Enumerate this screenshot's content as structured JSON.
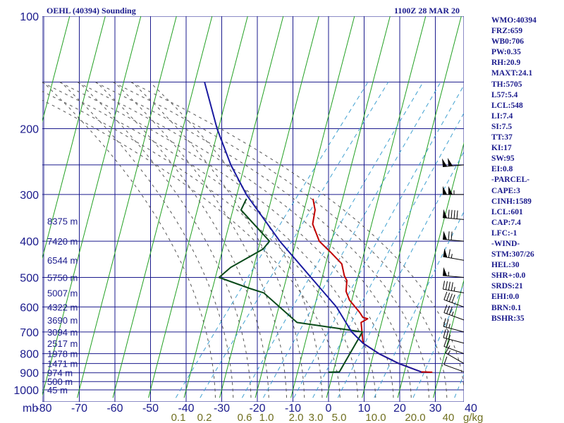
{
  "header": {
    "title": "OEHL (40394) Sounding",
    "timestamp": "1100Z 28 MAR 20"
  },
  "indices": [
    "WMO:40394",
    "FRZ:659",
    "WB0:706",
    "PW:0.35",
    "RH:20.9",
    "MAXT:24.1",
    "TH:5705",
    "L57:5.4",
    "LCL:548",
    "LI:7.4",
    "SI:7.5",
    "TT:37",
    "KI:17",
    "SW:95",
    "EI:0.8",
    "-PARCEL-",
    "CAPE:3",
    "CINH:1589",
    "LCL:601",
    "CAP:7.4",
    "LFC:-1",
    "-WIND-",
    "STM:307/26",
    "HEL:30",
    "SHR+:0.0",
    "SRDS:21",
    "EHI:0.0",
    "BRN:0.1",
    "BSHR:35"
  ],
  "colors": {
    "isobar": "#1a1a8c",
    "isotherm": "#1a1a8c",
    "dry_adiabat": "#22a022",
    "moist_adiabat": "#555555",
    "mixing_ratio": "#3fa0d0",
    "temperature": "#c00000",
    "dewpoint": "#0a4a1a",
    "parcel": "#1a1aa0",
    "text": "#1a1a8c",
    "mixing_label": "#707020"
  },
  "chart_data": {
    "type": "line",
    "subtype": "skew-t log-p sounding",
    "x_axis": {
      "unit_label": "mb",
      "ticks": [
        -80,
        -70,
        -60,
        -50,
        -40,
        -30,
        -20,
        -10,
        0,
        10,
        20,
        30,
        40
      ],
      "tick_labels": [
        "-80",
        "-70",
        "-60",
        "-50",
        "-40",
        "-30",
        "-20",
        "-10",
        "0",
        "10",
        "20",
        "30",
        "40"
      ],
      "range": [
        -80,
        40
      ]
    },
    "y_axis": {
      "scale": "log",
      "ticks": [
        100,
        200,
        300,
        400,
        500,
        600,
        700,
        800,
        900,
        1000
      ],
      "range": [
        100,
        1050
      ]
    },
    "mixing_ratio_labels": [
      {
        "label": "0.1",
        "value": 0.1
      },
      {
        "label": "0.2",
        "value": 0.2
      },
      {
        "label": "0.6",
        "value": 0.6
      },
      {
        "label": "1.0",
        "value": 1.0
      },
      {
        "label": "2.0",
        "value": 2.0
      },
      {
        "label": "3.0",
        "value": 3.0
      },
      {
        "label": "5.0",
        "value": 5.0
      },
      {
        "label": "10.0",
        "value": 10.0
      },
      {
        "label": "20.0",
        "value": 20.0
      },
      {
        "label": "40",
        "value": 40.0
      }
    ],
    "mixing_ratio_unit": "g/kg",
    "height_labels": [
      {
        "p": 353,
        "label": "8375 m"
      },
      {
        "p": 400,
        "label": "7420 m"
      },
      {
        "p": 450,
        "label": "6544 m"
      },
      {
        "p": 500,
        "label": "5750 m"
      },
      {
        "p": 550,
        "label": "5007 m"
      },
      {
        "p": 600,
        "label": "4322 m"
      },
      {
        "p": 650,
        "label": "3690 m"
      },
      {
        "p": 700,
        "label": "3094 m"
      },
      {
        "p": 750,
        "label": "2517 m"
      },
      {
        "p": 800,
        "label": "1978 m"
      },
      {
        "p": 850,
        "label": "1471 m"
      },
      {
        "p": 900,
        "label": "974 m"
      },
      {
        "p": 950,
        "label": "500 m"
      },
      {
        "p": 1000,
        "label": "45 m"
      }
    ],
    "series": [
      {
        "key": "temperature",
        "points": [
          [
            897,
            25.2
          ],
          [
            895,
            22.0
          ],
          [
            850,
            13.8
          ],
          [
            800,
            6.0
          ],
          [
            750,
            -0.8
          ],
          [
            700,
            -3.6
          ],
          [
            660,
            -6.0
          ],
          [
            645,
            -5.0
          ],
          [
            640,
            -6.6
          ],
          [
            620,
            -8.7
          ],
          [
            575,
            -14.3
          ],
          [
            545,
            -17.2
          ],
          [
            510,
            -19.4
          ],
          [
            495,
            -21.2
          ],
          [
            460,
            -24.6
          ],
          [
            430,
            -30.0
          ],
          [
            400,
            -36.0
          ],
          [
            360,
            -41.7
          ],
          [
            330,
            -44.2
          ],
          [
            308,
            -47.3
          ]
        ]
      },
      {
        "key": "dewpoint",
        "points": [
          [
            897,
            -4.0
          ],
          [
            895,
            -1.0
          ],
          [
            700,
            -3.5
          ],
          [
            685,
            -11.0
          ],
          [
            660,
            -24.0
          ],
          [
            550,
            -40.0
          ],
          [
            535,
            -45.0
          ],
          [
            500,
            -56.0
          ],
          [
            470,
            -55.0
          ],
          [
            420,
            -50.0
          ],
          [
            400,
            -50.0
          ],
          [
            330,
            -65.0
          ],
          [
            308,
            -66.0
          ]
        ]
      },
      {
        "key": "parcel",
        "points": [
          [
            895,
            22.0
          ],
          [
            850,
            13.8
          ],
          [
            800,
            6.0
          ],
          [
            750,
            -0.8
          ],
          [
            700,
            -6.5
          ],
          [
            600,
            -16.4
          ],
          [
            500,
            -30.2
          ],
          [
            400,
            -47.1
          ],
          [
            300,
            -67.0
          ],
          [
            250,
            -78.0
          ],
          [
            200,
            -90.0
          ],
          [
            150,
            -104.0
          ]
        ]
      }
    ],
    "wind_barbs": [
      {
        "p": 895,
        "dir": 290,
        "speed": 10
      },
      {
        "p": 850,
        "dir": 300,
        "speed": 15
      },
      {
        "p": 800,
        "dir": 290,
        "speed": 20
      },
      {
        "p": 750,
        "dir": 285,
        "speed": 25
      },
      {
        "p": 700,
        "dir": 285,
        "speed": 25
      },
      {
        "p": 650,
        "dir": 290,
        "speed": 35
      },
      {
        "p": 600,
        "dir": 290,
        "speed": 40
      },
      {
        "p": 550,
        "dir": 280,
        "speed": 45
      },
      {
        "p": 500,
        "dir": 275,
        "speed": 55
      },
      {
        "p": 450,
        "dir": 280,
        "speed": 65
      },
      {
        "p": 400,
        "dir": 275,
        "speed": 70
      },
      {
        "p": 350,
        "dir": 275,
        "speed": 90
      },
      {
        "p": 300,
        "dir": 270,
        "speed": 105
      },
      {
        "p": 250,
        "dir": 265,
        "speed": 100
      }
    ],
    "legend": "none",
    "grid": true
  }
}
